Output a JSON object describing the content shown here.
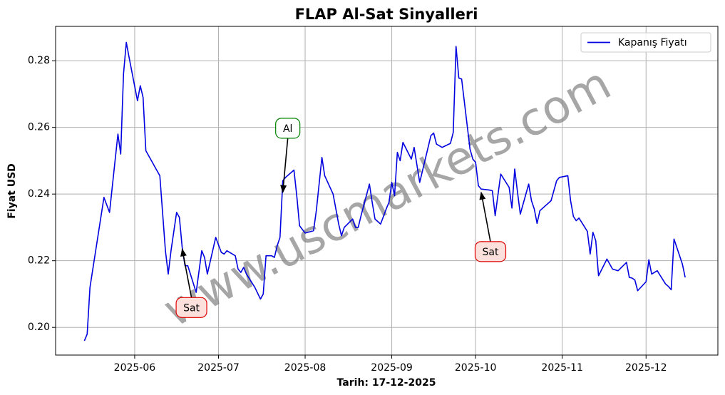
{
  "chart_data": {
    "type": "line",
    "title": "FLAP Al-Sat Sinyalleri",
    "xlabel": "Tarih: 17-12-2025",
    "ylabel": "Fiyat USD",
    "watermark": "www.uscmarkets.com",
    "x": [
      134,
      135,
      136,
      141,
      143,
      146,
      147,
      148,
      149,
      150,
      153,
      154,
      155,
      156,
      161,
      163,
      164,
      165,
      167,
      168,
      169,
      170,
      171,
      174,
      176,
      177,
      178,
      181,
      183,
      184,
      185,
      188,
      189,
      190,
      191,
      192,
      195,
      197,
      198,
      199,
      201,
      202,
      203,
      204,
      205,
      206,
      209,
      210,
      211,
      213,
      216,
      217,
      219,
      220,
      223,
      225,
      226,
      227,
      230,
      231,
      232,
      233,
      236,
      237,
      238,
      240,
      242,
      243,
      244,
      245,
      246,
      247,
      248,
      251,
      252,
      254,
      255,
      258,
      259,
      260,
      262,
      265,
      266,
      267,
      268,
      269,
      272,
      273,
      274,
      275,
      276,
      279,
      280,
      281,
      283,
      286,
      287,
      288,
      289,
      290,
      293,
      294,
      295,
      296,
      297,
      301,
      302,
      303,
      304,
      307,
      308,
      309,
      310,
      311,
      314,
      315,
      316,
      317,
      318,
      321,
      322,
      323,
      325,
      328,
      329,
      330,
      331,
      332,
      335,
      336,
      337,
      339,
      342,
      343,
      344,
      345,
      348,
      349
    ],
    "series": [
      {
        "name": "Kapanış Fiyatı",
        "color": "#0000e0",
        "values": [
          0.196,
          0.198,
          0.212,
          0.239,
          0.2345,
          0.258,
          0.252,
          0.276,
          0.2855,
          0.281,
          0.268,
          0.2725,
          0.269,
          0.253,
          0.2455,
          0.223,
          0.216,
          0.223,
          0.2345,
          0.233,
          0.224,
          0.2185,
          0.2185,
          0.2105,
          0.223,
          0.221,
          0.216,
          0.227,
          0.2225,
          0.222,
          0.223,
          0.2215,
          0.2175,
          0.2165,
          0.218,
          0.216,
          0.212,
          0.2085,
          0.21,
          0.2215,
          0.2215,
          0.221,
          0.2245,
          0.227,
          0.244,
          0.245,
          0.2472,
          0.2395,
          0.2305,
          0.2283,
          0.229,
          0.235,
          0.251,
          0.2455,
          0.24,
          0.231,
          0.2275,
          0.23,
          0.2325,
          0.23,
          0.23,
          0.2335,
          0.243,
          0.2375,
          0.2325,
          0.231,
          0.2355,
          0.2375,
          0.2435,
          0.2395,
          0.2525,
          0.25,
          0.2555,
          0.2505,
          0.254,
          0.2435,
          0.247,
          0.2575,
          0.2583,
          0.255,
          0.254,
          0.2552,
          0.2585,
          0.2843,
          0.2748,
          0.2745,
          0.2535,
          0.2505,
          0.2495,
          0.2425,
          0.2415,
          0.2412,
          0.241,
          0.2335,
          0.246,
          0.242,
          0.2358,
          0.2475,
          0.2405,
          0.234,
          0.243,
          0.238,
          0.2355,
          0.2312,
          0.235,
          0.238,
          0.241,
          0.244,
          0.245,
          0.2455,
          0.238,
          0.2333,
          0.232,
          0.2328,
          0.2288,
          0.222,
          0.2285,
          0.226,
          0.2155,
          0.2205,
          0.219,
          0.2175,
          0.217,
          0.2195,
          0.215,
          0.2148,
          0.2142,
          0.211,
          0.2137,
          0.2203,
          0.216,
          0.217,
          0.213,
          0.2123,
          0.2113,
          0.2265,
          0.219,
          0.215
        ]
      }
    ],
    "xlim": [
      123.7,
      360.7
    ],
    "xticks": [
      {
        "value": 152,
        "label": "2025-06"
      },
      {
        "value": 182,
        "label": "2025-07"
      },
      {
        "value": 213,
        "label": "2025-08"
      },
      {
        "value": 244,
        "label": "2025-09"
      },
      {
        "value": 274,
        "label": "2025-10"
      },
      {
        "value": 305,
        "label": "2025-11"
      },
      {
        "value": 335,
        "label": "2025-12"
      }
    ],
    "ylim": [
      0.1917,
      0.2903
    ],
    "yticks": [
      {
        "value": 0.2,
        "label": "0.20"
      },
      0.22,
      0.24,
      0.26,
      0.28
    ],
    "grid": true,
    "legend": "upper right",
    "annotations": [
      {
        "text": "Sat",
        "x": 169,
        "y": 0.2235,
        "color": "#e00000",
        "fill": "#fbe0dc"
      },
      {
        "text": "Al",
        "x": 205,
        "y": 0.2405,
        "color": "#008000",
        "fill": "#ffffff"
      },
      {
        "text": "Sat",
        "x": 276,
        "y": 0.2405,
        "color": "#e00000",
        "fill": "#fbe0dc"
      }
    ]
  }
}
